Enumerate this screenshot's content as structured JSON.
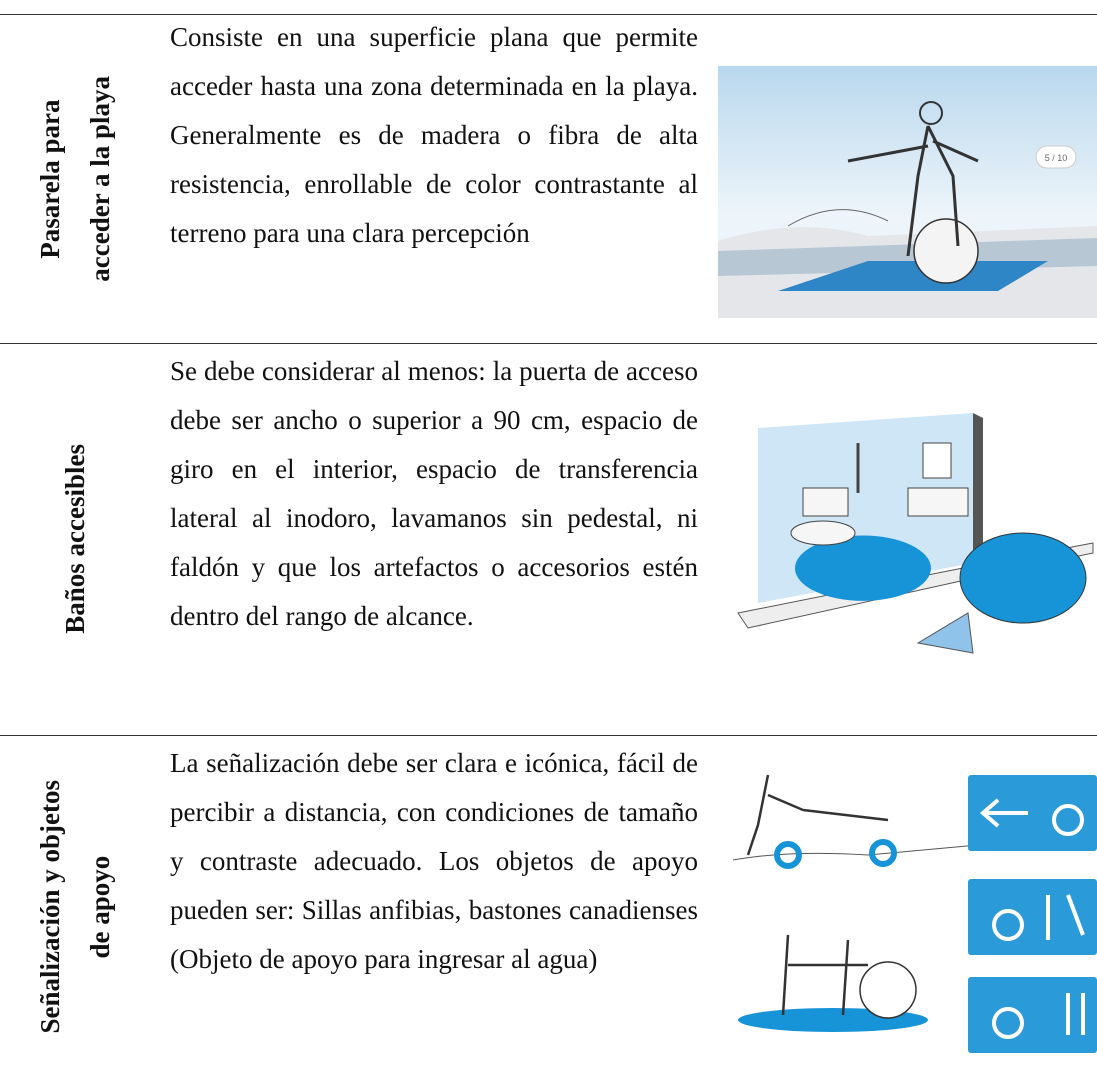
{
  "table": {
    "rows": [
      {
        "label": [
          "Pasarela para",
          "acceder a la playa"
        ],
        "description": "Consiste en una superficie plana que permite acceder hasta una zona determinada en la playa. Generalmente es de madera o fibra de alta resistencia, enrollable de color contrastante al terreno para una clara percepción",
        "image_caption": "5 / 10"
      },
      {
        "label": [
          "Baños accesibles"
        ],
        "description": "Se debe considerar al menos: la puerta de acceso debe ser ancho o superior a 90 cm, espacio de giro en el interior, espacio de transferencia lateral al inodoro, lavamanos sin pedestal, ni faldón y que los artefactos o accesorios estén dentro del rango de alcance."
      },
      {
        "label": [
          "Señalización y objetos",
          "de apoyo"
        ],
        "description": "La señalización debe ser clara e icónica, fácil de percibir a distancia, con condiciones de tamaño y contraste adecuado. Los objetos de apoyo pueden ser: Sillas anfibias, bastones canadienses (Objeto de apoyo para ingresar al agua)"
      }
    ]
  }
}
